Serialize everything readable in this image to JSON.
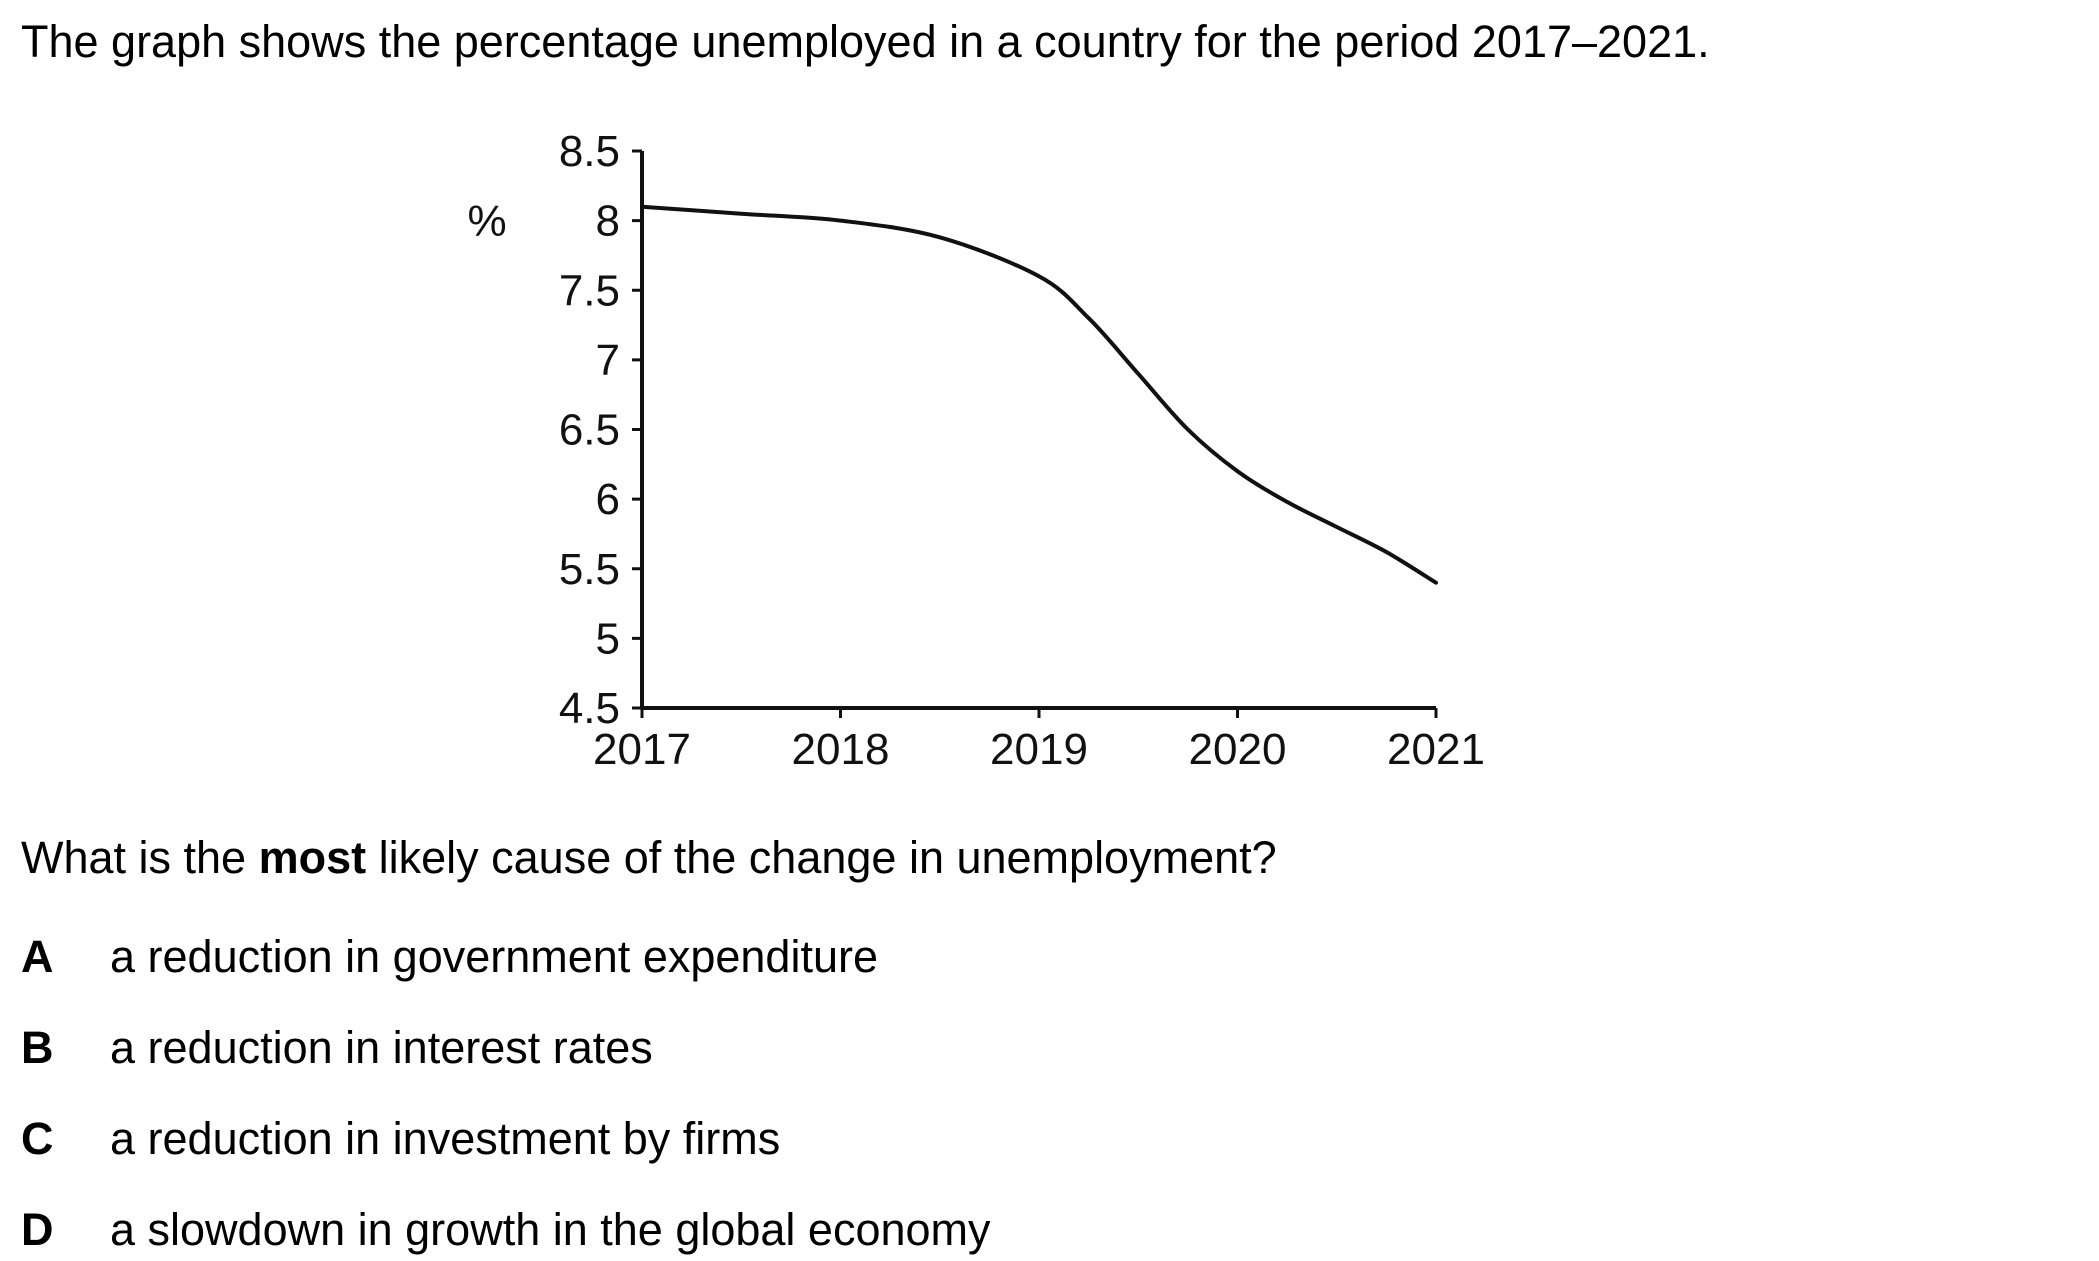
{
  "intro": "The graph shows the percentage unemployed in a country for the period 2017–2021.",
  "question": {
    "before": "What is the ",
    "bold": "most",
    "after": " likely cause of the change in unemployment?"
  },
  "options": [
    {
      "letter": "A",
      "text": "a reduction in government expenditure"
    },
    {
      "letter": "B",
      "text": "a reduction in interest rates"
    },
    {
      "letter": "C",
      "text": "a reduction in investment by firms"
    },
    {
      "letter": "D",
      "text": "a slowdown in growth in the global economy"
    }
  ],
  "chart_data": {
    "type": "line",
    "title": "",
    "xlabel": "",
    "ylabel": "%",
    "xlim": [
      2017,
      2021
    ],
    "ylim": [
      4.5,
      8.5
    ],
    "x_ticks": [
      "2017",
      "2018",
      "2019",
      "2020",
      "2021"
    ],
    "y_ticks": [
      "8.5",
      "8",
      "7.5",
      "7",
      "6.5",
      "6",
      "5.5",
      "5",
      "4.5"
    ],
    "grid": false,
    "series": [
      {
        "x": [
          2017,
          2017.5,
          2018,
          2018.5,
          2019,
          2019.25,
          2019.5,
          2019.75,
          2020,
          2020.25,
          2020.5,
          2020.75,
          2021
        ],
        "y": [
          8.1,
          8.05,
          8.0,
          7.88,
          7.6,
          7.3,
          6.9,
          6.5,
          6.2,
          5.98,
          5.8,
          5.62,
          5.4
        ]
      }
    ],
    "line_color": "#111111"
  }
}
